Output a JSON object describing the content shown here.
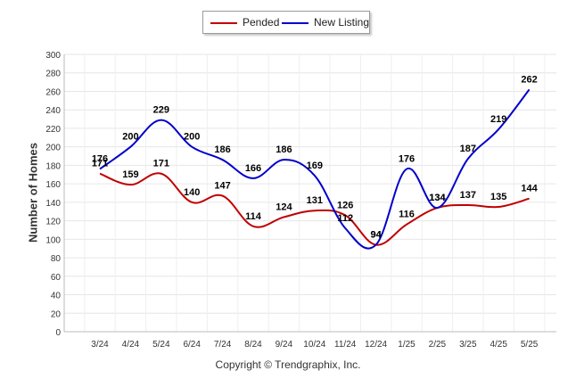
{
  "chart_data": {
    "type": "line",
    "categories": [
      "3/24",
      "4/24",
      "5/24",
      "6/24",
      "7/24",
      "8/24",
      "9/24",
      "10/24",
      "11/24",
      "12/24",
      "1/25",
      "2/25",
      "3/25",
      "4/25",
      "5/25"
    ],
    "series": [
      {
        "name": "Pended",
        "color": "#c00000",
        "values": [
          171,
          159,
          171,
          140,
          147,
          114,
          124,
          131,
          126,
          94,
          116,
          134,
          137,
          135,
          144
        ]
      },
      {
        "name": "New Listing",
        "color": "#0000cc",
        "values": [
          176,
          200,
          229,
          200,
          186,
          166,
          186,
          169,
          112,
          94,
          176,
          134,
          187,
          219,
          262
        ]
      }
    ],
    "ylabel": "Number of Homes",
    "xlabel": "",
    "ylim": [
      0,
      300
    ],
    "yticks": [
      0,
      20,
      40,
      60,
      80,
      100,
      120,
      140,
      160,
      180,
      200,
      220,
      240,
      260,
      280,
      300
    ],
    "grid": true,
    "legend_position": "top-center",
    "data_labels": true
  },
  "footer": {
    "copyright": "Copyright © Trendgraphix, Inc."
  }
}
